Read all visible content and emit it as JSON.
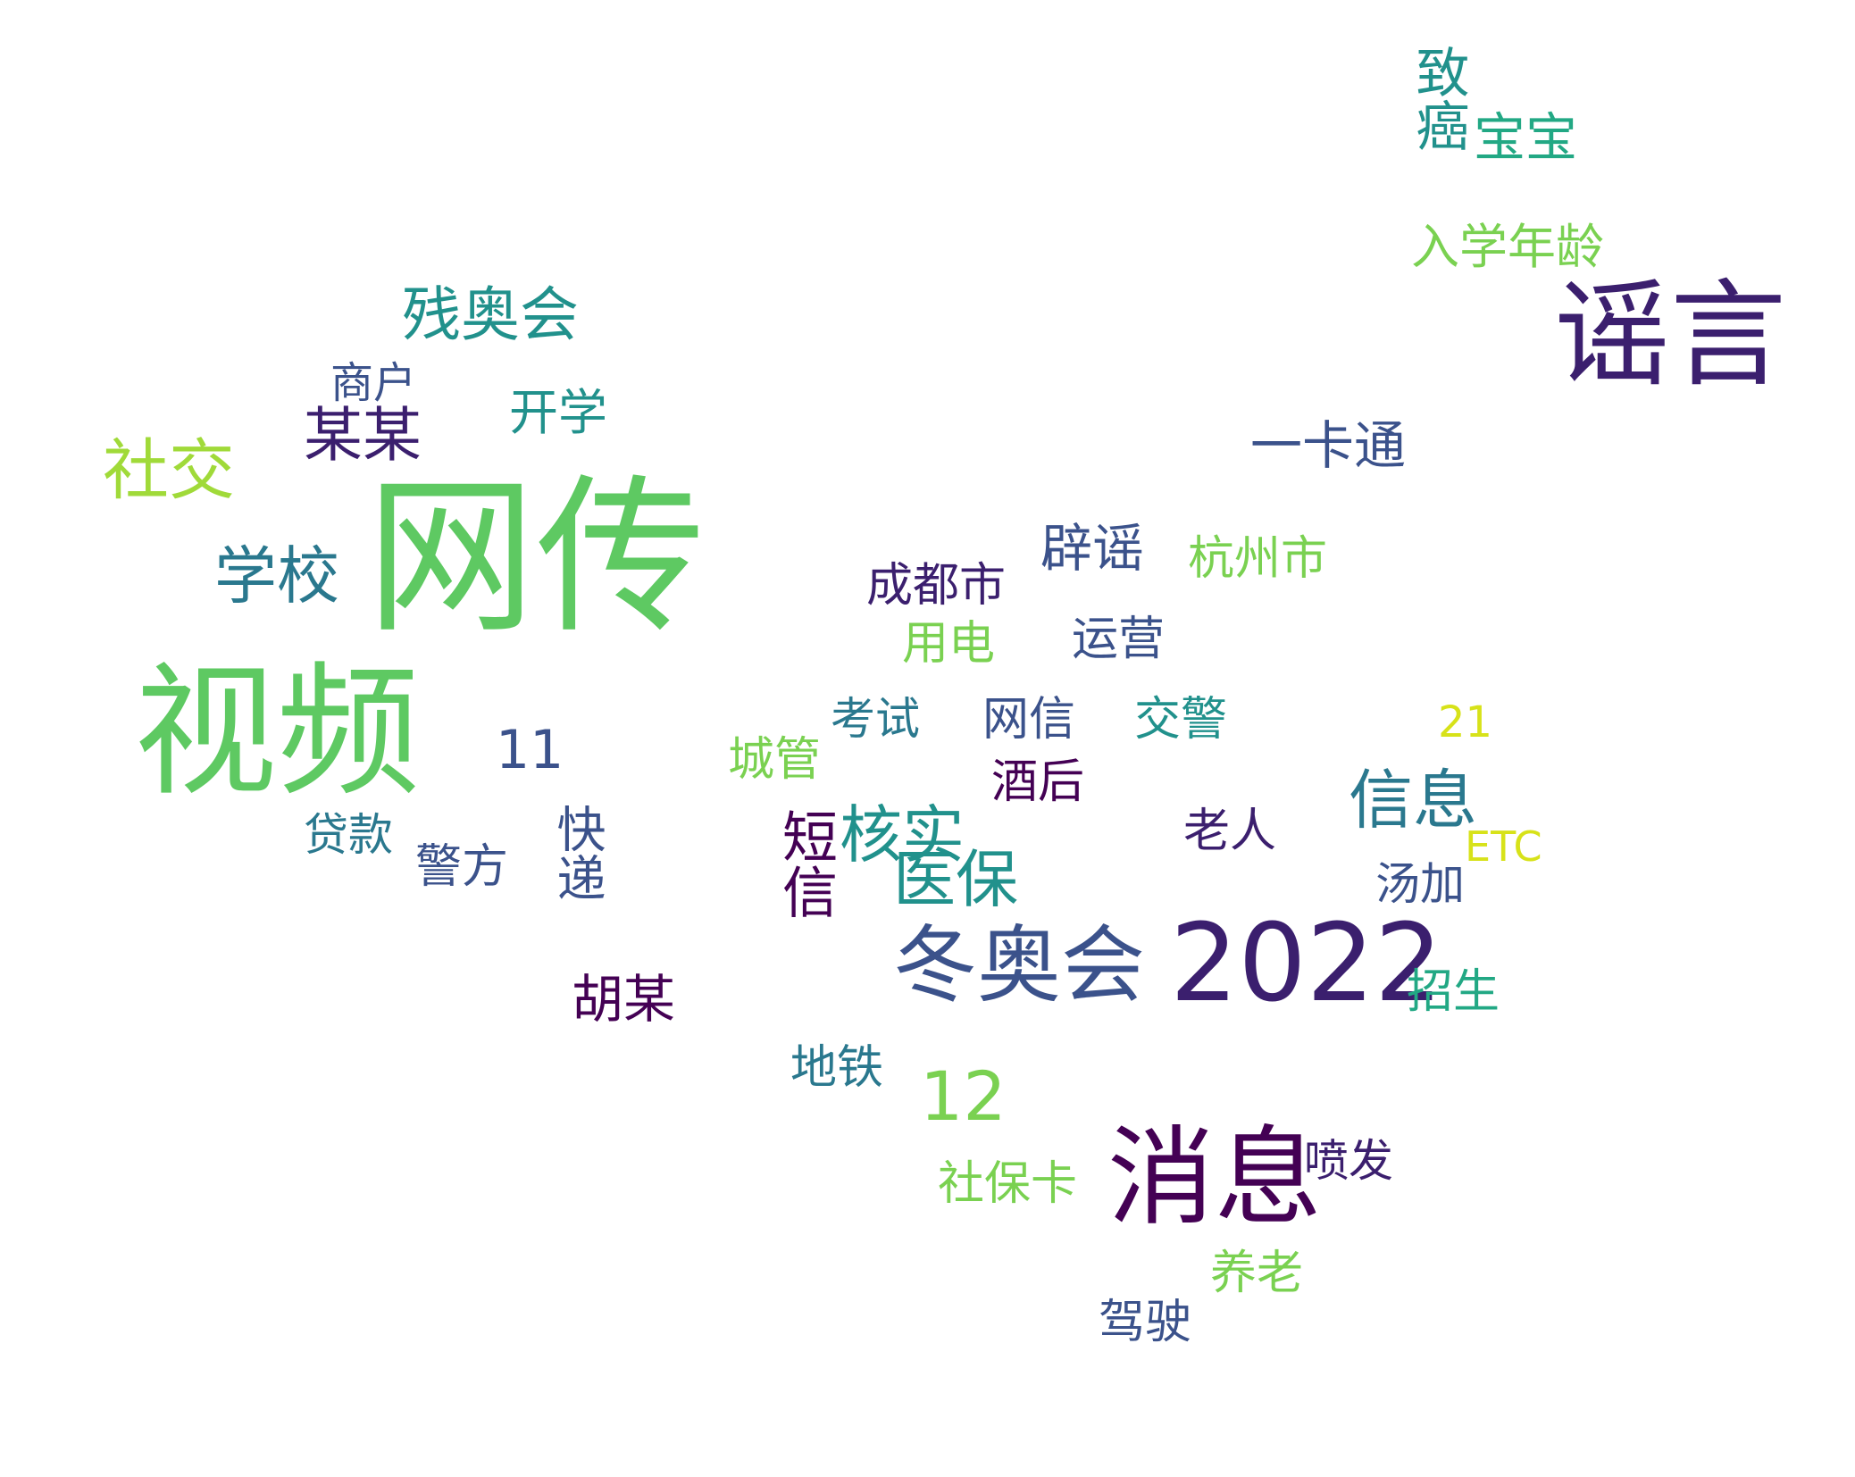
{
  "words": [
    {
      "text": "网传",
      "size": 1.0,
      "color": "#5ec962"
    },
    {
      "text": "视频",
      "size": 0.93,
      "color": "#5ec962"
    },
    {
      "text": "谣言",
      "size": 0.78,
      "color": "#3b1f6e"
    },
    {
      "text": "2022",
      "size": 0.72,
      "color": "#3b1f6e"
    },
    {
      "text": "消息",
      "size": 0.7,
      "color": "#440154"
    },
    {
      "text": "冬奥会",
      "size": 0.55,
      "color": "#3b528b"
    },
    {
      "text": "社交",
      "size": 0.45,
      "color": "#a0da39"
    },
    {
      "text": "学校",
      "size": 0.43,
      "color": "#2a788e"
    },
    {
      "text": "残奥会",
      "size": 0.42,
      "color": "#21918c"
    },
    {
      "text": "某某",
      "size": 0.42,
      "color": "#3b1f6e"
    },
    {
      "text": "信息",
      "size": 0.45,
      "color": "#2a788e"
    },
    {
      "text": "医保",
      "size": 0.43,
      "color": "#21918c"
    },
    {
      "text": "核实",
      "size": 0.43,
      "color": "#21918c"
    },
    {
      "text": "一卡通",
      "size": 0.36,
      "color": "#3b528b"
    },
    {
      "text": "12",
      "size": 0.45,
      "color": "#7ad151"
    },
    {
      "text": "致癌",
      "size": 0.36,
      "color": "#21918c"
    },
    {
      "text": "宝宝",
      "size": 0.36,
      "color": "#22a884"
    },
    {
      "text": "入学年龄",
      "size": 0.34,
      "color": "#7ad151"
    },
    {
      "text": "辟谣",
      "size": 0.36,
      "color": "#3b528b"
    },
    {
      "text": "短信",
      "size": 0.38,
      "color": "#440154"
    },
    {
      "text": "胡某",
      "size": 0.36,
      "color": "#440154"
    },
    {
      "text": "快递",
      "size": 0.34,
      "color": "#3b528b"
    },
    {
      "text": "开学",
      "size": 0.34,
      "color": "#21918c"
    },
    {
      "text": "成都市",
      "size": 0.32,
      "color": "#3b1f6e"
    },
    {
      "text": "用电",
      "size": 0.32,
      "color": "#7ad151"
    },
    {
      "text": "杭州市",
      "size": 0.32,
      "color": "#7ad151"
    },
    {
      "text": "运营",
      "size": 0.32,
      "color": "#3b528b"
    },
    {
      "text": "网信",
      "size": 0.32,
      "color": "#3b528b"
    },
    {
      "text": "城管",
      "size": 0.32,
      "color": "#7ad151"
    },
    {
      "text": "酒后",
      "size": 0.32,
      "color": "#440154"
    },
    {
      "text": "交警",
      "size": 0.32,
      "color": "#21918c"
    },
    {
      "text": "老人",
      "size": 0.32,
      "color": "#3b1f6e"
    },
    {
      "text": "汤加",
      "size": 0.3,
      "color": "#3b528b"
    },
    {
      "text": "警方",
      "size": 0.32,
      "color": "#3b528b"
    },
    {
      "text": "贷款",
      "size": 0.3,
      "color": "#2a788e"
    },
    {
      "text": "招生",
      "size": 0.32,
      "color": "#22a884"
    },
    {
      "text": "地铁",
      "size": 0.32,
      "color": "#2a788e"
    },
    {
      "text": "社保卡",
      "size": 0.32,
      "color": "#7ad151"
    },
    {
      "text": "养老",
      "size": 0.32,
      "color": "#7ad151"
    },
    {
      "text": "驾驶",
      "size": 0.32,
      "color": "#3b528b"
    },
    {
      "text": "喷发",
      "size": 0.3,
      "color": "#3b1f6e"
    },
    {
      "text": "商户",
      "size": 0.28,
      "color": "#3b528b"
    },
    {
      "text": "考试",
      "size": 0.3,
      "color": "#2a788e"
    },
    {
      "text": "11",
      "size": 0.32,
      "color": "#3b528b"
    },
    {
      "text": "21",
      "size": 0.28,
      "color": "#d7e219"
    },
    {
      "text": "ETC",
      "size": 0.26,
      "color": "#d7e219"
    }
  ]
}
